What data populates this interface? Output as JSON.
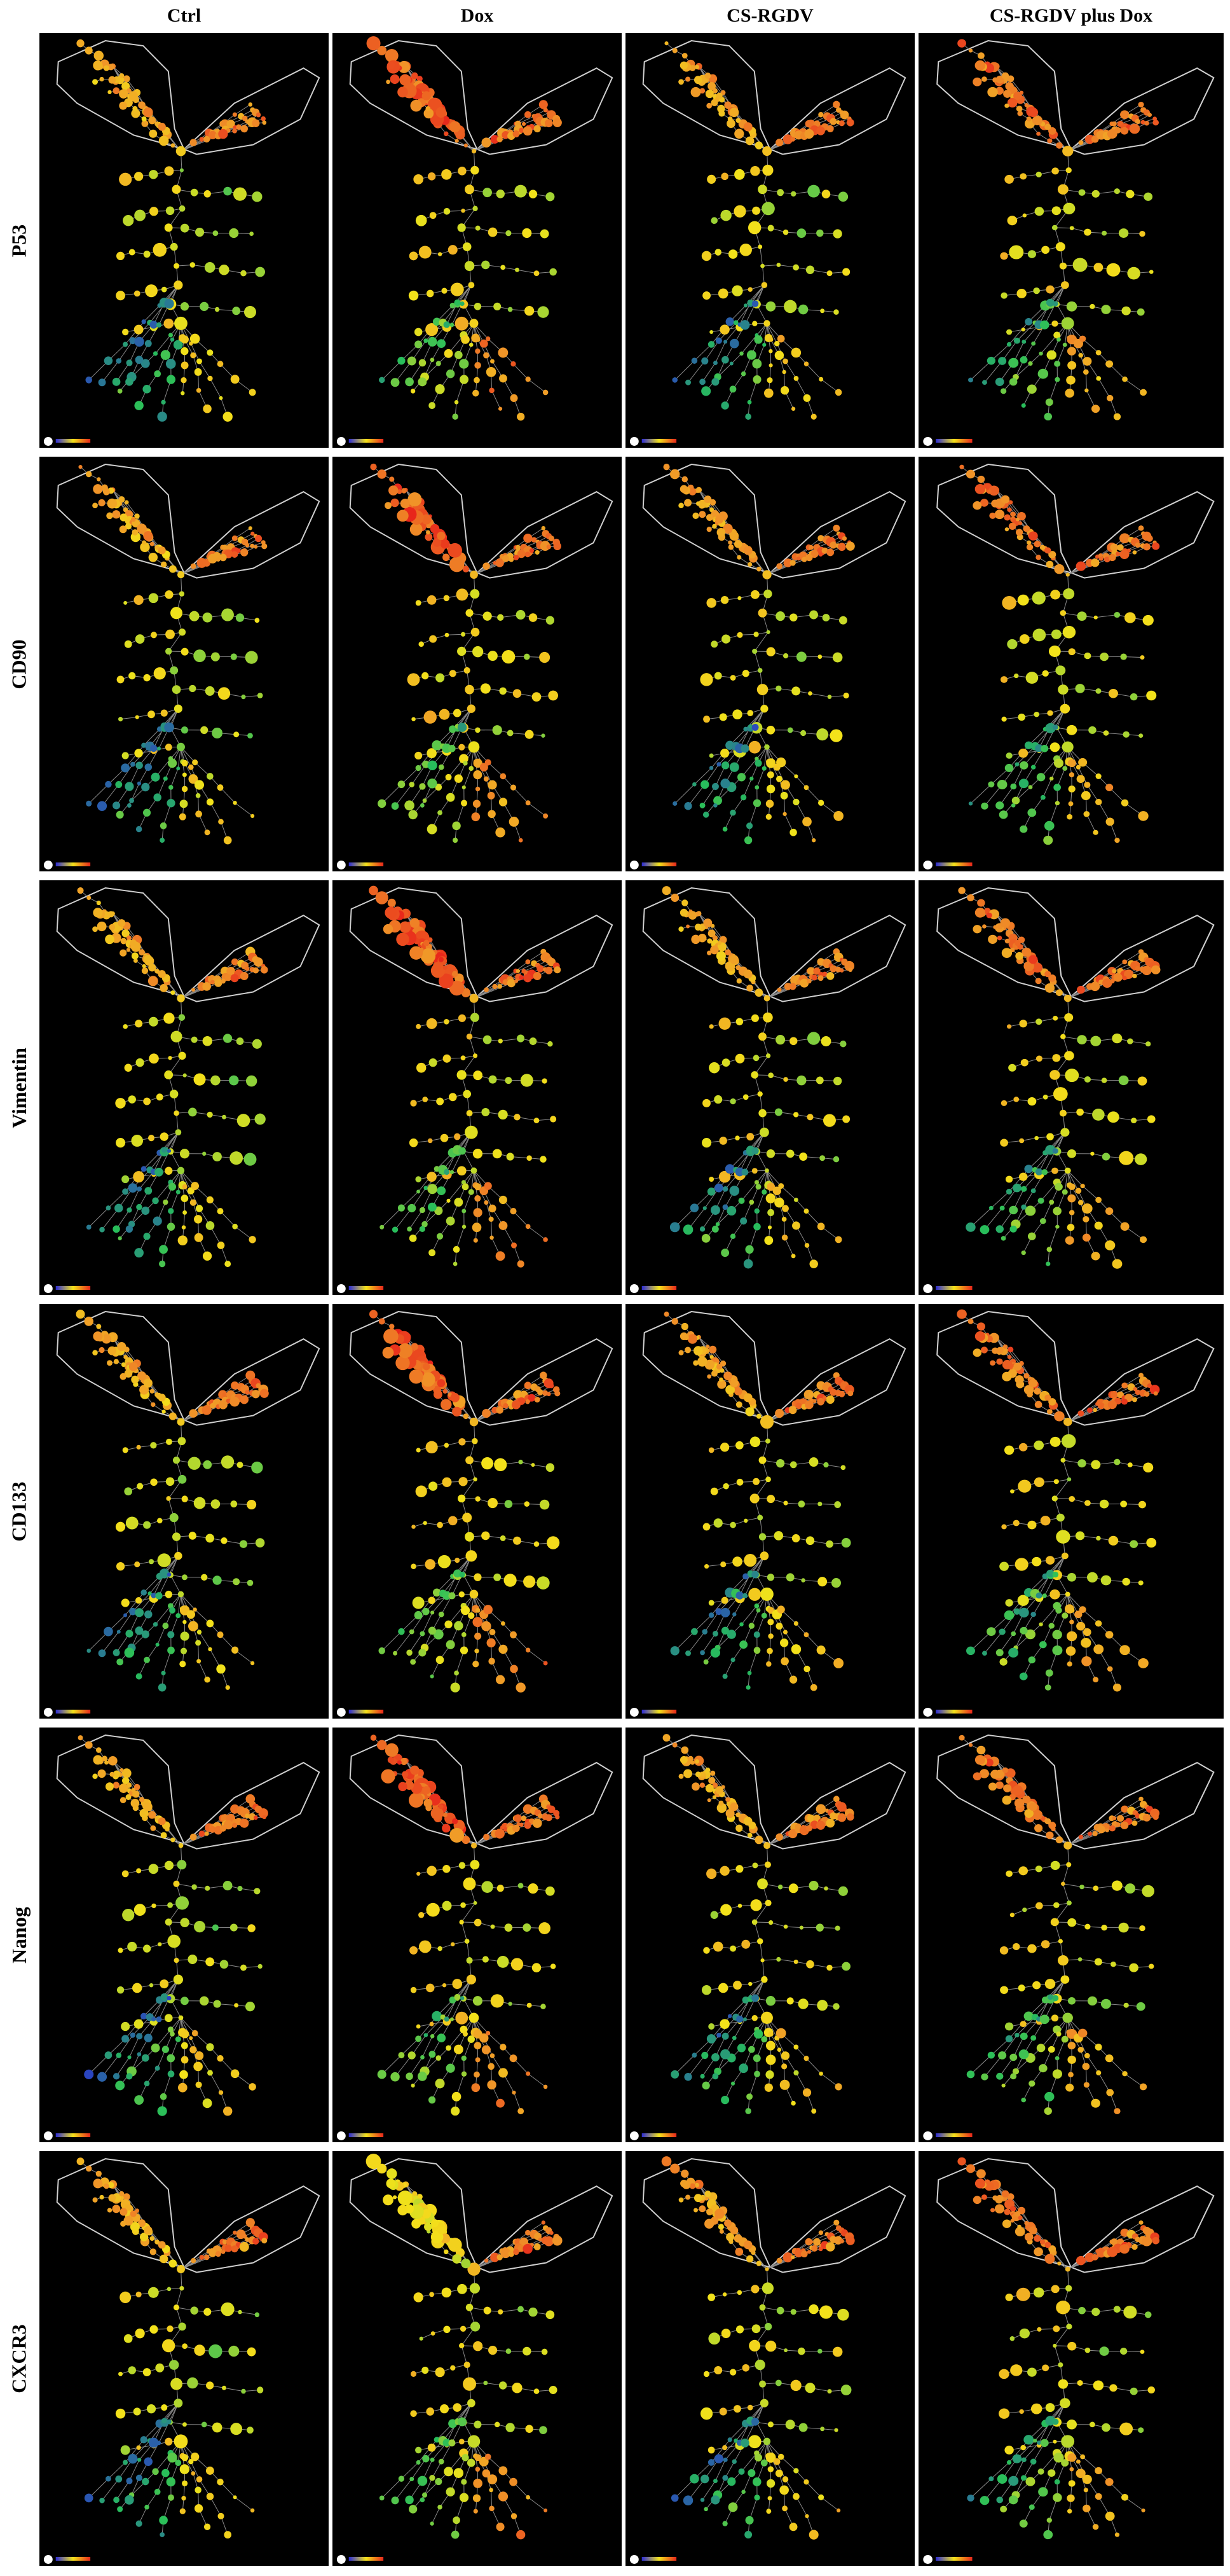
{
  "columns": [
    "Ctrl",
    "Dox",
    "CS-RGDV",
    "CS-RGDV plus Dox"
  ],
  "rows": [
    "P53",
    "CD90",
    "Vimentin",
    "CD133",
    "Nanog",
    "CXCR3"
  ],
  "colors": {
    "background": "#000000",
    "outline": "#cfcfcf",
    "edge": "#8a8a8a",
    "scale_low": "#2b2bd6",
    "scale_mid": "#f3e21a",
    "scale_high": "#e8261b"
  },
  "legend_icon": "node-size-and-color-scale-legend"
}
